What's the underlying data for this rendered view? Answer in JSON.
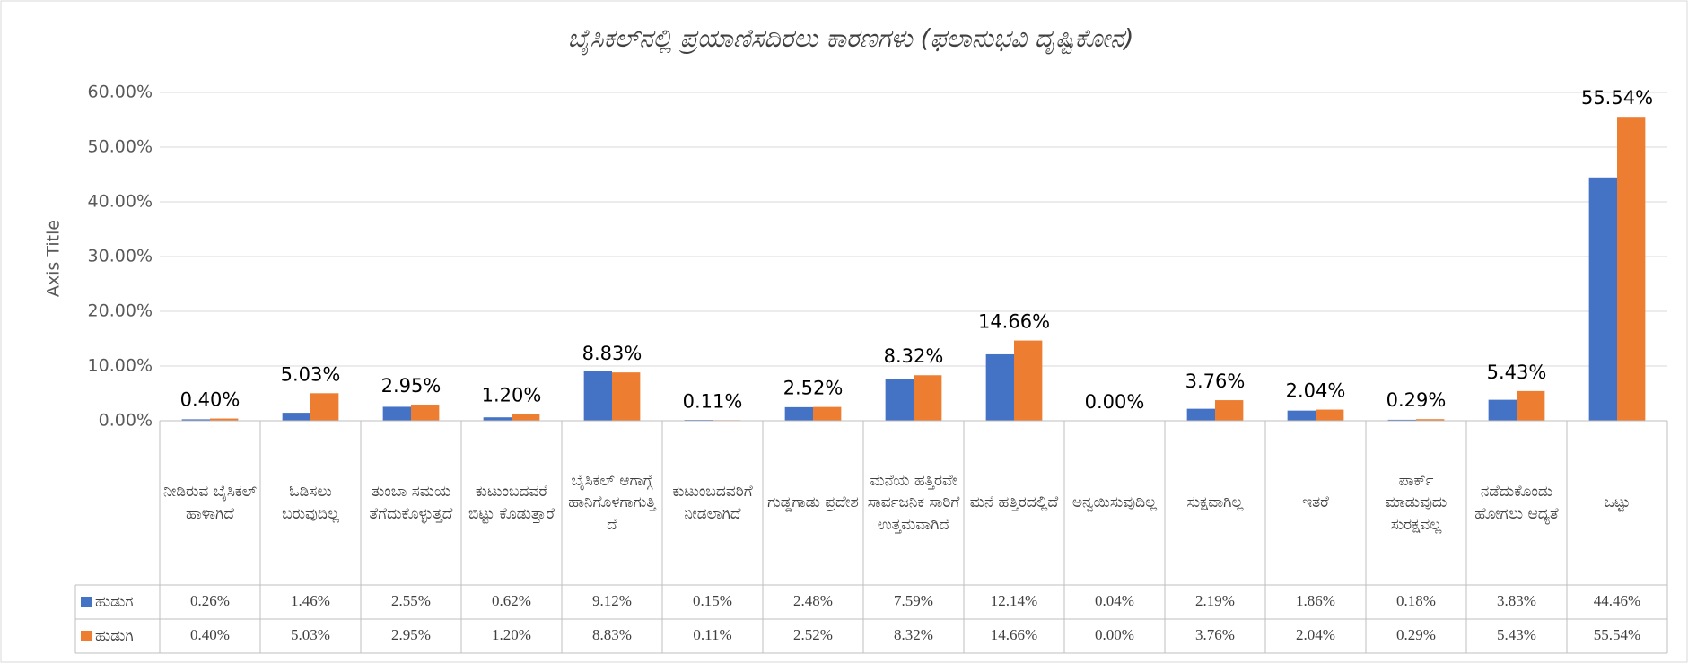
{
  "chart_data": {
    "type": "bar",
    "title": "ಬೈಸಿಕಲ್‌ನಲ್ಲಿ ಪ್ರಯಾಣಿಸದಿರಲು ಕಾರಣಗಳು (ಫಲಾನುಭವಿ ದೃಷ್ಟಿಕೋನ)",
    "y_label": "Axis Title",
    "categories": [
      "ನೀಡಿರುವ ಬೈಸಿಕಲ್ ಹಾಳಾಗಿದೆ",
      "ಓಡಿಸಲು ಬರುವುದಿಲ್ಲ",
      "ತುಂಬಾ ಸಮಯ ತೆಗೆದುಕೊಳ್ಳುತ್ತದೆ",
      "ಕುಟುಂಬದವರೆ ಬಿಟ್ಟು ಕೊಡುತ್ತಾರೆ",
      "ಬೈಸಿಕಲ್ ಆಗಾಗ್ಗೆ ಹಾನಿಗೊಳಗಾಗುತ್ತಿದೆ",
      "ಕುಟುಂಬದವರಿಗೆ ನೀಡಲಾಗಿದೆ",
      "ಗುಡ್ಡಗಾಡು ಪ್ರದೇಶ",
      "ಮನೆಯ ಹತ್ತಿರವೇ ಸಾರ್ವಜನಿಕ ಸಾರಿಗೆ ಉತ್ತಮವಾಗಿದೆ",
      "ಮನೆ ಹತ್ತಿರದಲ್ಲಿದೆ",
      "ಅನ್ವಯಿಸುವುದಿಲ್ಲ",
      "ಸುಕ್ಷವಾಗಿಲ್ಲ",
      "ಇತರೆ",
      "ಪಾರ್ಕ್ ಮಾಡುವುದು ಸುರಕ್ಷವಲ್ಲ",
      "ನಡೆದುಕೊಂಡು ಹೋಗಲು ಆದ್ಯತೆ",
      "ಒಟ್ಟು"
    ],
    "series": [
      {
        "name": "ಹುಡುಗ",
        "color": "#4472c4",
        "values": [
          0.26,
          1.46,
          2.55,
          0.62,
          9.12,
          0.15,
          2.48,
          7.59,
          12.14,
          0.04,
          2.19,
          1.86,
          0.18,
          3.83,
          44.46
        ],
        "value_labels": [
          "0.26%",
          "1.46%",
          "2.55%",
          "0.62%",
          "9.12%",
          "0.15%",
          "2.48%",
          "7.59%",
          "12.14%",
          "0.04%",
          "2.19%",
          "1.86%",
          "0.18%",
          "3.83%",
          "44.46%"
        ]
      },
      {
        "name": "ಹುಡುಗಿ",
        "color": "#ed7d31",
        "values": [
          0.4,
          5.03,
          2.95,
          1.2,
          8.83,
          0.11,
          2.52,
          8.32,
          14.66,
          0.0,
          3.76,
          2.04,
          0.29,
          5.43,
          55.54
        ],
        "value_labels": [
          "0.40%",
          "5.03%",
          "2.95%",
          "1.20%",
          "8.83%",
          "0.11%",
          "2.52%",
          "8.32%",
          "14.66%",
          "0.00%",
          "3.76%",
          "2.04%",
          "0.29%",
          "5.43%",
          "55.54%"
        ]
      }
    ],
    "ylim": [
      0,
      60
    ],
    "yticks": [
      {
        "value": 0,
        "label": "0.00%"
      },
      {
        "value": 10,
        "label": "10.00%"
      },
      {
        "value": 20,
        "label": "20.00%"
      },
      {
        "value": 30,
        "label": "30.00%"
      },
      {
        "value": 40,
        "label": "40.00%"
      },
      {
        "value": 50,
        "label": "50.00%"
      },
      {
        "value": 60,
        "label": "60.00%"
      }
    ],
    "grid": true,
    "data_labels_series": 1,
    "data_table": true
  }
}
